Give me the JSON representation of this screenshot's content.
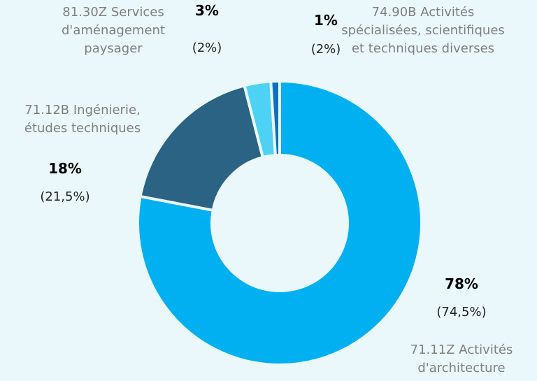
{
  "chart_data": {
    "type": "donut",
    "categories": [
      "71.11Z Activités d'architecture",
      "71.12B Ingénierie, études techniques",
      "81.30Z Services d'aménagement paysager",
      "74.90B Activités spécialisées, scientifiques et techniques diverses"
    ],
    "values": [
      78,
      18,
      3,
      1
    ],
    "value_labels": [
      "78%",
      "18%",
      "3%",
      "1%"
    ],
    "comparison_labels": [
      "(74,5%)",
      "(21,5%)",
      "(2%)",
      "(2%)"
    ],
    "colors": [
      "#00b0f0",
      "#2a6383",
      "#4dd2f5",
      "#0c6fc0"
    ]
  }
}
